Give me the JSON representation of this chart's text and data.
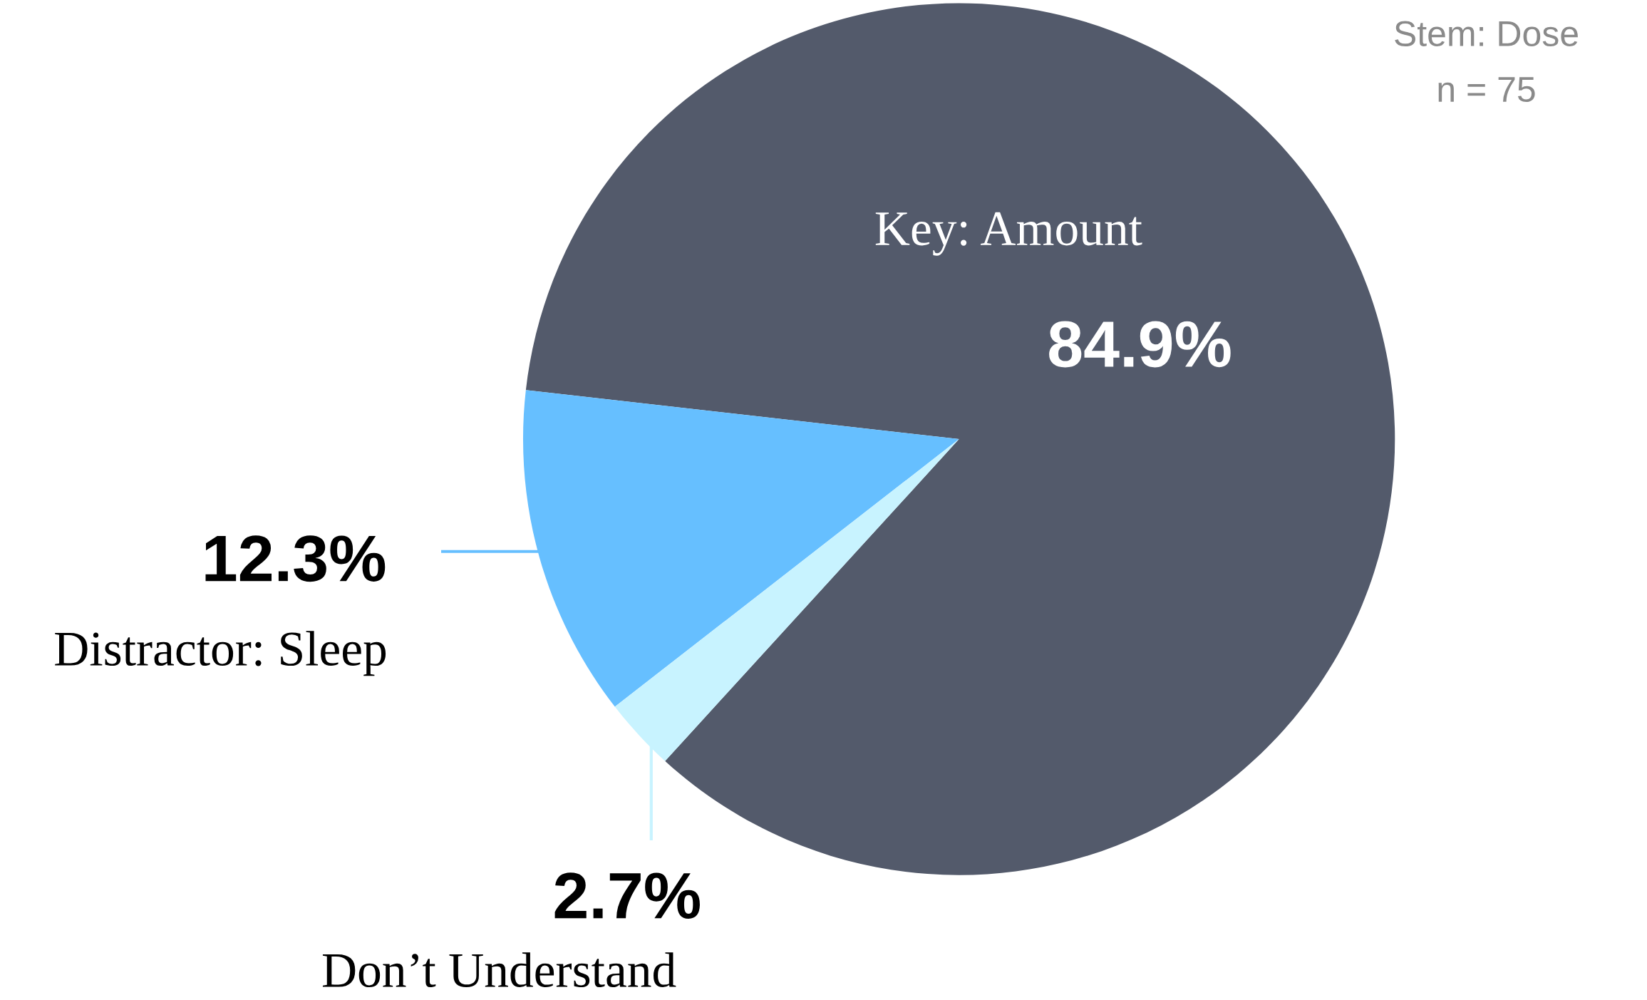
{
  "chart_data": {
    "type": "pie",
    "categories": [
      "Key: Amount",
      "Distractor: Sleep",
      "Don’t Understand"
    ],
    "values": [
      84.9,
      12.3,
      2.7
    ],
    "colors": [
      "#535a6b",
      "#66bfff",
      "#c8f3ff"
    ],
    "value_labels": [
      "84.9%",
      "12.3%",
      "2.7%"
    ],
    "annotations": [
      "Stem: Dose",
      "n = 75"
    ]
  }
}
